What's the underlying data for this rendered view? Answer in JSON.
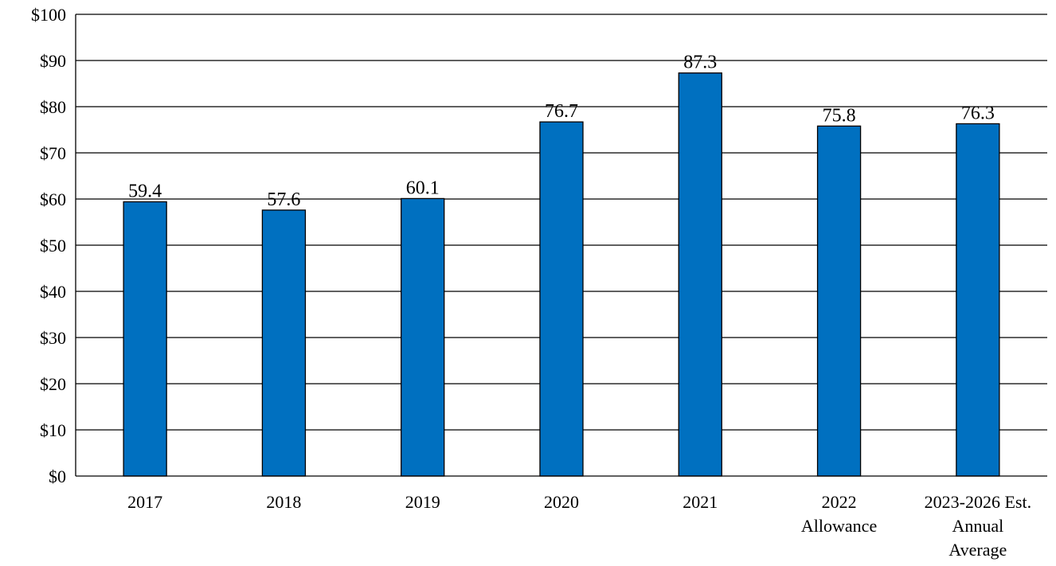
{
  "chart_data": {
    "type": "bar",
    "title": "",
    "xlabel": "",
    "ylabel": "",
    "categories": [
      [
        "2017"
      ],
      [
        "2018"
      ],
      [
        "2019"
      ],
      [
        "2020"
      ],
      [
        "2021"
      ],
      [
        "2022",
        "Allowance"
      ],
      [
        "2023-2026 Est.",
        "Annual",
        "Average"
      ]
    ],
    "values": [
      59.4,
      57.6,
      60.1,
      76.7,
      87.3,
      75.8,
      76.3
    ],
    "value_labels": [
      "59.4",
      "57.6",
      "60.1",
      "76.7",
      "87.3",
      "75.8",
      "76.3"
    ],
    "ylim": [
      0,
      100
    ],
    "y_ticks": [
      0,
      10,
      20,
      30,
      40,
      50,
      60,
      70,
      80,
      90,
      100
    ],
    "y_tick_labels": [
      "$0",
      "$10",
      "$20",
      "$30",
      "$40",
      "$50",
      "$60",
      "$70",
      "$80",
      "$90",
      "$100"
    ],
    "grid": true,
    "legend": "none",
    "bar_color": "#0070C0"
  }
}
